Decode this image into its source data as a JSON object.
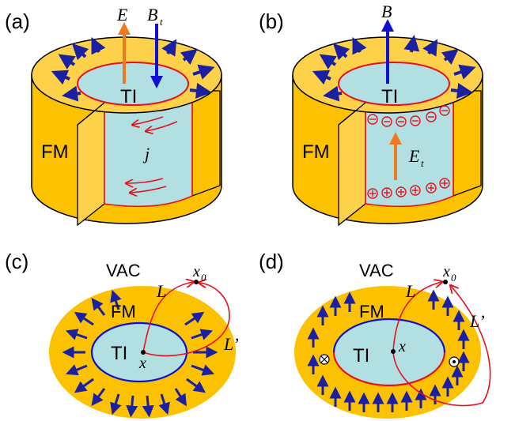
{
  "panels": {
    "a": {
      "label": "(a)",
      "field_E": "E",
      "field_B": "B",
      "field_B_sub": "t",
      "ti": "TI",
      "fm": "FM",
      "current": "j"
    },
    "b": {
      "label": "(b)",
      "field_B": "B",
      "ti": "TI",
      "fm": "FM",
      "field_E": "E",
      "field_E_sub": "t"
    },
    "c": {
      "label": "(c)",
      "vac": "VAC",
      "fm": "FM",
      "ti": "TI",
      "point_x": "x",
      "point_x0": "x",
      "point_x0_sub": "0",
      "path_L": "L",
      "path_Lp": "L’"
    },
    "d": {
      "label": "(d)",
      "vac": "VAC",
      "fm": "FM",
      "ti": "TI",
      "point_x": "x",
      "point_x0": "x",
      "point_x0_sub": "0",
      "path_L": "L",
      "path_Lp": "L’"
    }
  },
  "colors": {
    "fm_gold": "#fcc200",
    "fm_top": "#fdd24a",
    "ti_cyan": "#b2dfe2",
    "surface_red": "#e8101c",
    "moment_blue": "#1a20a0",
    "e_orange": "#f07820",
    "b_blue": "#1010d0"
  }
}
